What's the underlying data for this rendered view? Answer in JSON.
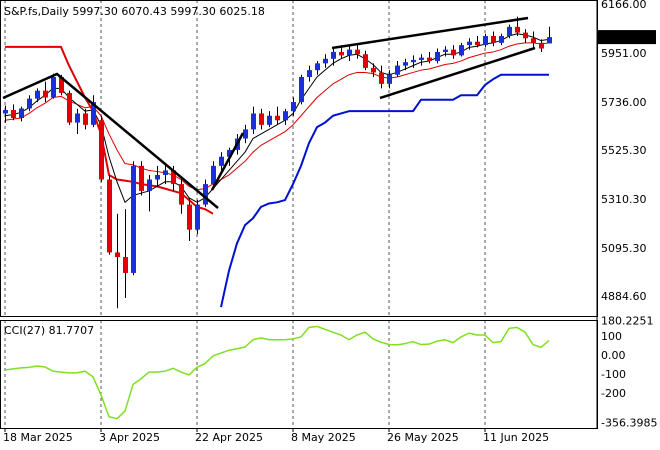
{
  "chart_data": [
    {
      "type": "candlestick",
      "title": "S&P.fs,Daily  5997.30 6070.43 5997.30 6025.18",
      "categories": [
        "18 Mar 2025",
        null,
        null,
        null,
        null,
        null,
        null,
        null,
        null,
        null,
        null,
        null,
        "3 Apr 2025",
        null,
        null,
        null,
        null,
        null,
        null,
        null,
        null,
        null,
        null,
        null,
        "22 Apr 2025",
        null,
        null,
        null,
        null,
        null,
        null,
        null,
        null,
        null,
        null,
        null,
        "8 May 2025",
        null,
        null,
        null,
        null,
        null,
        null,
        null,
        null,
        null,
        null,
        null,
        "26 May 2025",
        null,
        null,
        null,
        null,
        null,
        null,
        null,
        null,
        null,
        null,
        null,
        "11 Jun 2025",
        null,
        null,
        null,
        null,
        null,
        null,
        null,
        null
      ],
      "open": [
        5690,
        5705,
        5670,
        5712,
        5755,
        5790,
        5760,
        5850,
        5780,
        5650,
        5690,
        5640,
        5660,
        5400,
        5080,
        5060,
        4990,
        5460,
        5350,
        5400,
        5420,
        5440,
        5380,
        5290,
        5180,
        5290,
        5380,
        5460,
        5500,
        5530,
        5580,
        5620,
        5690,
        5640,
        5680,
        5660,
        5700,
        5740,
        5850,
        5880,
        5910,
        5930,
        5960,
        5945,
        5970,
        5950,
        5890,
        5870,
        5820,
        5860,
        5900,
        5915,
        5925,
        5935,
        5920,
        5960,
        5970,
        5945,
        5990,
        6005,
        5990,
        6030,
        6000,
        6030,
        6070,
        6045,
        6020,
        6000,
        5997.3
      ],
      "high": [
        5725,
        5730,
        5720,
        5770,
        5800,
        5830,
        5865,
        5860,
        5790,
        5710,
        5710,
        5770,
        5680,
        5420,
        5250,
        5270,
        5480,
        5480,
        5420,
        5460,
        5470,
        5460,
        5400,
        5320,
        5310,
        5400,
        5480,
        5520,
        5540,
        5600,
        5640,
        5720,
        5710,
        5700,
        5720,
        5710,
        5760,
        5860,
        5900,
        5920,
        5950,
        5980,
        5990,
        5985,
        5990,
        5965,
        5910,
        5900,
        5880,
        5920,
        5930,
        5945,
        5950,
        5960,
        5975,
        5985,
        5990,
        6000,
        6020,
        6030,
        6040,
        6050,
        6040,
        6080,
        6115,
        6060,
        6050,
        6015,
        6070.43
      ],
      "low": [
        5650,
        5660,
        5655,
        5700,
        5740,
        5740,
        5755,
        5770,
        5640,
        5600,
        5620,
        5630,
        5390,
        5070,
        4835,
        4880,
        4980,
        5330,
        5260,
        5370,
        5380,
        5350,
        5250,
        5130,
        5160,
        5280,
        5370,
        5440,
        5460,
        5510,
        5560,
        5600,
        5620,
        5630,
        5640,
        5640,
        5680,
        5730,
        5830,
        5860,
        5890,
        5900,
        5930,
        5920,
        5930,
        5880,
        5850,
        5800,
        5800,
        5850,
        5880,
        5890,
        5900,
        5910,
        5910,
        5940,
        5930,
        5940,
        5970,
        5980,
        5980,
        5985,
        5990,
        6020,
        6030,
        6000,
        5980,
        5960,
        5997.3
      ],
      "close": [
        5705,
        5670,
        5712,
        5755,
        5790,
        5760,
        5850,
        5780,
        5650,
        5690,
        5640,
        5740,
        5400,
        5080,
        5060,
        4990,
        5460,
        5350,
        5400,
        5420,
        5440,
        5380,
        5290,
        5180,
        5290,
        5380,
        5460,
        5500,
        5530,
        5580,
        5620,
        5690,
        5640,
        5680,
        5660,
        5700,
        5740,
        5850,
        5880,
        5910,
        5930,
        5960,
        5945,
        5970,
        5950,
        5890,
        5870,
        5820,
        5860,
        5900,
        5915,
        5925,
        5935,
        5920,
        5960,
        5970,
        5945,
        5990,
        6005,
        5990,
        6030,
        6000,
        6030,
        6070,
        6045,
        6020,
        6000,
        5975,
        6025.18
      ],
      "up_color": "#1a2fd8",
      "down_color": "#e00000",
      "wick_color": "#000000",
      "series": [
        {
          "color": "#e00000",
          "width": 2,
          "values": [
            5982,
            5982,
            5982,
            5982,
            5982,
            5982,
            5982,
            5982,
            5900,
            5830,
            5760,
            5700,
            5600,
            5420,
            5400,
            5395,
            5390,
            5380,
            5375,
            5370,
            5360,
            5350,
            5340,
            5310,
            5280,
            5270,
            5250,
            null,
            null,
            null,
            null,
            null,
            null,
            null,
            null,
            null,
            null,
            null,
            null,
            null,
            null,
            null,
            null,
            null,
            null,
            null,
            null,
            null,
            null,
            null,
            null,
            null,
            null,
            null,
            null,
            null,
            null,
            null,
            null,
            null,
            null,
            null,
            null,
            null,
            null,
            null,
            null,
            null,
            null
          ]
        },
        {
          "color": "#0010d0",
          "width": 2,
          "values": [
            null,
            null,
            null,
            null,
            null,
            null,
            null,
            null,
            null,
            null,
            null,
            null,
            null,
            null,
            null,
            null,
            null,
            null,
            null,
            null,
            null,
            null,
            null,
            null,
            null,
            null,
            null,
            4840,
            5000,
            5120,
            5200,
            5230,
            5280,
            5295,
            5300,
            5310,
            5380,
            5460,
            5560,
            5630,
            5650,
            5680,
            5690,
            5700,
            5700,
            5700,
            5700,
            5700,
            5700,
            5700,
            5700,
            5700,
            5750,
            5750,
            5750,
            5750,
            5750,
            5770,
            5770,
            5770,
            5815,
            5840,
            5860,
            5860,
            5860,
            5860,
            5860,
            5860,
            5860
          ]
        },
        {
          "color": "#e00000",
          "width": 1,
          "values": [
            5660,
            5665,
            5670,
            5690,
            5715,
            5735,
            5760,
            5765,
            5745,
            5730,
            5715,
            5720,
            5680,
            5600,
            5530,
            5470,
            5465,
            5450,
            5440,
            5435,
            5430,
            5420,
            5400,
            5370,
            5355,
            5360,
            5380,
            5400,
            5420,
            5450,
            5480,
            5520,
            5550,
            5570,
            5590,
            5610,
            5640,
            5680,
            5720,
            5760,
            5790,
            5820,
            5840,
            5860,
            5870,
            5870,
            5865,
            5850,
            5845,
            5850,
            5860,
            5870,
            5880,
            5885,
            5895,
            5905,
            5910,
            5920,
            5935,
            5945,
            5955,
            5960,
            5970,
            5985,
            5995,
            6000,
            6000,
            5995,
            6000
          ]
        },
        {
          "color": "#000000",
          "width": 1,
          "values": [
            5680,
            5685,
            5695,
            5715,
            5745,
            5770,
            5800,
            5800,
            5760,
            5730,
            5700,
            5705,
            5640,
            5500,
            5390,
            5300,
            5330,
            5340,
            5350,
            5370,
            5390,
            5390,
            5370,
            5320,
            5300,
            5320,
            5360,
            5400,
            5440,
            5480,
            5520,
            5580,
            5600,
            5620,
            5640,
            5660,
            5690,
            5750,
            5800,
            5850,
            5880,
            5910,
            5930,
            5945,
            5950,
            5930,
            5905,
            5870,
            5860,
            5870,
            5885,
            5900,
            5915,
            5920,
            5935,
            5950,
            5950,
            5960,
            5980,
            5985,
            5995,
            6000,
            6010,
            6030,
            6040,
            6035,
            6025,
            6010,
            6015
          ]
        }
      ],
      "current_price": 6025.18,
      "ylim": [
        4801,
        6188
      ],
      "yticks": [
        {
          "value": 6166,
          "label": "6166.00"
        },
        {
          "value": 5951,
          "label": "5951.00"
        },
        {
          "value": 5736,
          "label": "5736.00"
        },
        {
          "value": 5525.3,
          "label": "5525.30"
        },
        {
          "value": 5310.3,
          "label": "5310.30"
        },
        {
          "value": 5095.3,
          "label": "5095.30"
        },
        {
          "value": 4884.6,
          "label": "4884.60"
        }
      ],
      "grid": true
    },
    {
      "type": "line",
      "title": "CCI(27) 81.7707",
      "series": [
        {
          "color": "#80e020",
          "values": [
            -74,
            -68,
            -63,
            -60,
            -53,
            -58,
            -80,
            -85,
            -89,
            -89,
            -80,
            -110,
            -205,
            -320,
            -330,
            -290,
            -150,
            -120,
            -85,
            -85,
            -80,
            -65,
            -85,
            -100,
            -60,
            -40,
            0,
            15,
            30,
            38,
            47,
            85,
            95,
            85,
            85,
            85,
            90,
            100,
            150,
            155,
            140,
            125,
            110,
            85,
            110,
            125,
            90,
            72,
            60,
            58,
            65,
            75,
            60,
            62,
            78,
            85,
            70,
            100,
            120,
            110,
            110,
            70,
            75,
            145,
            150,
            125,
            60,
            45,
            81.7707
          ]
        }
      ],
      "ylim": [
        -379,
        189
      ],
      "yticks": [
        180.2251,
        100,
        {
          "value": 0,
          "label": "0.00"
        },
        -100,
        -200,
        -356.3985
      ],
      "levels": [
        100,
        -100,
        -200
      ],
      "level_color": "#6d8197"
    }
  ]
}
